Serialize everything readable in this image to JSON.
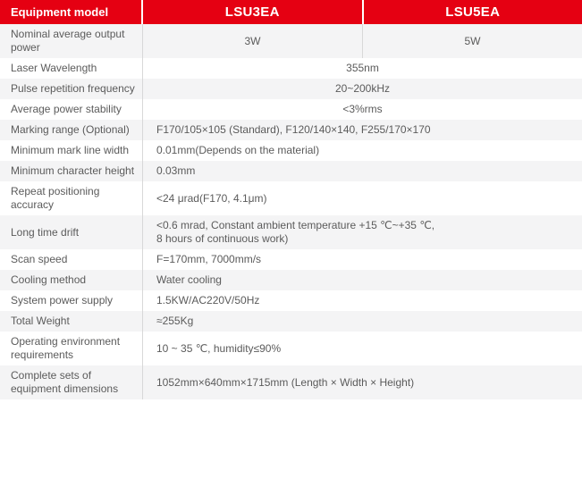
{
  "colors": {
    "header_red": "#e50012",
    "row_alt_gray": "#f4f4f5",
    "divider_gray": "#d8d8d8",
    "text_gray": "#5b5b5b"
  },
  "table": {
    "header": {
      "equipment_model": "Equipment model",
      "model_a": "LSU3EA",
      "model_b": "LSU5EA"
    },
    "rows": [
      {
        "label": "Nominal average output power",
        "split": true,
        "values": [
          "3W",
          "5W"
        ],
        "align": "center"
      },
      {
        "label": "Laser Wavelength",
        "value": "355nm",
        "align": "center"
      },
      {
        "label": "Pulse repetition frequency",
        "value": "20~200kHz",
        "align": "center"
      },
      {
        "label": "Average power stability",
        "value": "<3%rms",
        "align": "center"
      },
      {
        "label": "Marking range (Optional)",
        "value": "F170/105×105 (Standard), F120/140×140, F255/170×170",
        "align": "left"
      },
      {
        "label": "Minimum mark line width",
        "value": "0.01mm(Depends on the material)",
        "align": "left"
      },
      {
        "label": "Minimum character height",
        "value": "0.03mm",
        "align": "left"
      },
      {
        "label": "Repeat positioning accuracy",
        "value": "<24 μrad(F170, 4.1μm)",
        "align": "left"
      },
      {
        "label": "Long time drift",
        "value": "<0.6 mrad, Constant ambient temperature +15 ℃~+35 ℃,\n8 hours of continuous work)",
        "align": "left"
      },
      {
        "label": "Scan speed",
        "value": "F=170mm, 7000mm/s",
        "align": "left"
      },
      {
        "label": "Cooling method",
        "value": "Water cooling",
        "align": "left"
      },
      {
        "label": "System power supply",
        "value": "1.5KW/AC220V/50Hz",
        "align": "left"
      },
      {
        "label": "Total Weight",
        "value": "≈255Kg",
        "align": "left"
      },
      {
        "label": "Operating environment requirements",
        "value": "10 ~ 35 ℃, humidity≤90%",
        "align": "left"
      },
      {
        "label": "Complete sets of equipment dimensions",
        "value": "1052mm×640mm×1715mm (Length × Width × Height)",
        "align": "left"
      }
    ]
  }
}
